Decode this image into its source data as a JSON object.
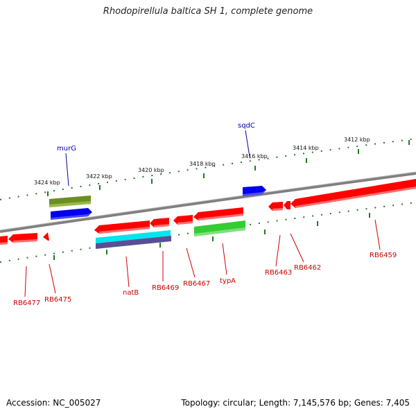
{
  "title": "Rhodopirellula baltica SH 1, complete genome",
  "footer": {
    "accession": "Accession: NC_005027",
    "stats": "Topology: circular; Length: 7,145,576 bp; Genes: 7,405"
  },
  "scale_labels": [
    "3424 kbp",
    "3422 kbp",
    "3420 kbp",
    "3418 kbp",
    "3416 kbp",
    "3414 kbp",
    "3412 kbp"
  ],
  "gene_labels": {
    "murG": "murG",
    "sqdC": "sqdC",
    "RB6477": "RB6477",
    "RB6475": "RB6475",
    "natB": "natB",
    "RB6469": "RB6469",
    "RB6467": "RB6467",
    "typA": "typA",
    "RB6463": "RB6463",
    "RB6462": "RB6462",
    "RB6459": "RB6459"
  },
  "colors": {
    "cds_red": "#ff0000",
    "blue": "#0000ee",
    "olive": "#6b8e23",
    "cyan": "#00e5ee",
    "slate": "#5a4f96",
    "green": "#33cc33",
    "backbone": "#808080",
    "ticks": "#1e7a1e"
  }
}
